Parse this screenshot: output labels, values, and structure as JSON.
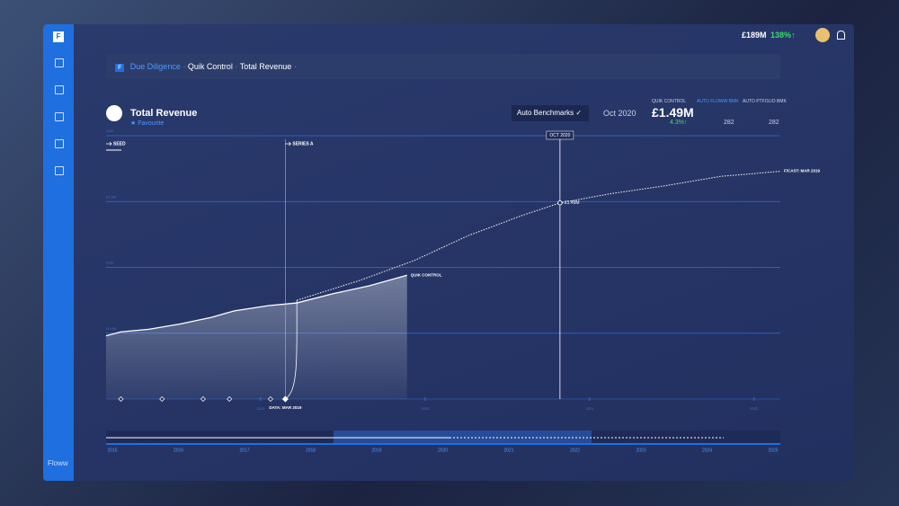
{
  "header": {
    "total": "£189M",
    "change": "138%↑"
  },
  "sidebar": {
    "logo": "F",
    "brand": "Floww"
  },
  "breadcrumb": [
    "Due Diligence",
    "Quik Control",
    "Total Revenue"
  ],
  "panel": {
    "title": "Total Revenue",
    "favourite": "Favourite",
    "benchmark_button": "Auto Benchmarks",
    "period": "Oct 2020",
    "stats": [
      {
        "label": "QUIK CONTROL",
        "value": "£1.49M",
        "change": "4.3%↑"
      },
      {
        "label": "AUTO FLOWW BMK",
        "value": "282"
      },
      {
        "label": "AUTO PTFOLIO BMK",
        "value": "282"
      }
    ]
  },
  "navigator_years": [
    "2015",
    "2016",
    "2017",
    "2018",
    "2019",
    "2020",
    "2021",
    "2022",
    "2023",
    "2024",
    "2025"
  ],
  "chart_data": {
    "type": "line",
    "xlim": [
      2018.06,
      2022.16
    ],
    "xticks": [
      2019,
      2020,
      2021,
      2022
    ],
    "ylim": [
      0,
      2
    ],
    "yticks": [
      {
        "value": 0.5,
        "label": "£0.5M"
      },
      {
        "value": 1,
        "label": "£1M"
      },
      {
        "value": 1.5,
        "label": "£1.5M"
      },
      {
        "value": 2,
        "label": "£2M"
      }
    ],
    "series": [
      {
        "name": "QUIK CONTROL",
        "color": "#ffffff",
        "x": [
          2018.06,
          2018.15,
          2018.32,
          2018.51,
          2018.7,
          2018.84,
          2019.05,
          2019.22,
          2019.44,
          2019.66,
          2019.89
        ],
        "values": [
          0.48,
          0.51,
          0.53,
          0.57,
          0.62,
          0.67,
          0.71,
          0.73,
          0.8,
          0.86,
          0.94
        ]
      },
      {
        "name": "F/CAST: MAR 2019",
        "color": "#ffffff",
        "dashed": true,
        "x": [
          2019.22,
          2019.6,
          2019.93,
          2020.26,
          2020.58,
          2020.82,
          2021.13,
          2021.46,
          2021.79,
          2022.16
        ],
        "values": [
          0.75,
          0.9,
          1.05,
          1.24,
          1.39,
          1.49,
          1.56,
          1.62,
          1.69,
          1.73
        ]
      }
    ],
    "events": [
      {
        "label": "SEED",
        "x": 2018.06
      },
      {
        "label": "SERIES A",
        "x": 2019.15
      }
    ],
    "milestones": [
      2018.15,
      2018.4,
      2018.65,
      2018.81,
      2019.06
    ],
    "data_cutoff": {
      "label": "DATA: MAR 2019",
      "x": 2019.15
    },
    "highlight": {
      "label": "OCT 2020",
      "x": 2020.82,
      "value": 1.49,
      "value_label": "£1.49M"
    }
  }
}
